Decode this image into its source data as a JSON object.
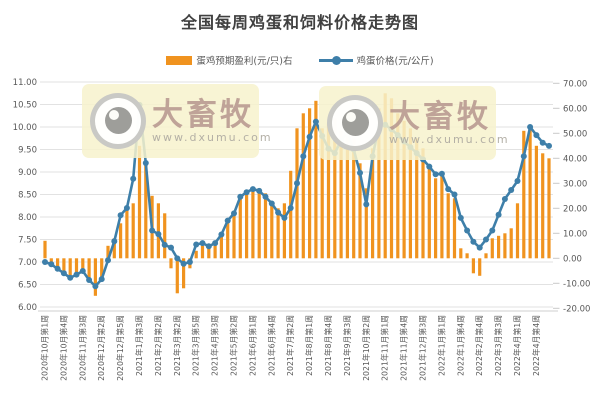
{
  "title": "全国每周鸡蛋和饲料价格走势图",
  "legend": [
    {
      "label": "蛋鸡预期盈利(元/只)右",
      "color": "#F0931F",
      "marker": "bar-swatch"
    },
    {
      "label": "鸡蛋价格(元/公斤)",
      "color": "#3E7FA9",
      "marker": "line-dot-swatch"
    }
  ],
  "watermark": {
    "name": "大畜牧",
    "url": "www.dxumu.com",
    "logo": "eye-logo-icon"
  },
  "chart_data": {
    "type": "combo_bar_line",
    "title": "全国每周鸡蛋和饲料价格走势图",
    "legend_position": "top",
    "grid": "horizontal",
    "x_tick_interval": 3,
    "x_tick_labels": [
      "2020年10月第1周",
      "2020年10月第4周",
      "2020年11月第3周",
      "2020年12月第2周",
      "2020年12月第5周",
      "2021年1月第3周",
      "2021年2月第2周",
      "2021年3月第2周",
      "2021年3月第5周",
      "2021年4月第3周",
      "2021年5月第2周",
      "2021年6月第1周",
      "2021年6月第4周",
      "2021年7月第2周",
      "2021年8月第1周",
      "2021年8月第4周",
      "2021年9月第3周",
      "2021年10月第2周",
      "2021年11月第1周",
      "2021年11月第4周",
      "2021年12月第3周",
      "2022年1月第1周",
      "2022年1月第4周",
      "2022年2月第4周",
      "2022年3月第3周",
      "2022年4月第1周",
      "2022年4月第4周"
    ],
    "left_axis": {
      "min": 6,
      "max": 11,
      "tick_labels": [
        "6.00",
        "6.50",
        "7.00",
        "7.50",
        "8.00",
        "8.50",
        "9.00",
        "9.50",
        "10.00",
        "10.50",
        "11.00"
      ]
    },
    "right_axis": {
      "min": -20,
      "max": 70,
      "tick_labels": [
        "-20.00",
        "-10.00",
        "0.00",
        "10.00",
        "20.00",
        "30.00",
        "40.00",
        "50.00",
        "60.00",
        "70.00"
      ]
    },
    "series": [
      {
        "name": "蛋鸡预期盈利(元/只)右",
        "type": "bar",
        "axis": "right",
        "color": "#F0931F",
        "values": [
          7,
          -2,
          -4,
          -6,
          -7,
          -6,
          -6,
          -9,
          -15,
          -8,
          5,
          8,
          14,
          20,
          22,
          45,
          38,
          25,
          22,
          18,
          -4,
          -14,
          -12,
          -4,
          3,
          5,
          4,
          6,
          10,
          15,
          18,
          24,
          27,
          28,
          28,
          26,
          22,
          20,
          22,
          35,
          52,
          58,
          60,
          63,
          52,
          54,
          56,
          51,
          50,
          48,
          38,
          28,
          44,
          60,
          66,
          64,
          58,
          55,
          52,
          48,
          44,
          36,
          32,
          33,
          26,
          24,
          4,
          2,
          -6,
          -7,
          2,
          8,
          9,
          10,
          12,
          22,
          51,
          52,
          45,
          42,
          40
        ]
      },
      {
        "name": "鸡蛋价格(元/公斤)",
        "type": "line",
        "axis": "left",
        "color": "#3E7FA9",
        "values": [
          7.0,
          6.95,
          6.85,
          6.75,
          6.65,
          6.72,
          6.8,
          6.6,
          6.46,
          6.62,
          7.04,
          7.46,
          8.04,
          8.2,
          8.85,
          10.49,
          9.2,
          7.7,
          7.62,
          7.38,
          7.32,
          7.08,
          6.96,
          7.0,
          7.39,
          7.42,
          7.35,
          7.42,
          7.61,
          7.92,
          8.08,
          8.45,
          8.55,
          8.62,
          8.58,
          8.45,
          8.3,
          8.1,
          7.98,
          8.2,
          8.75,
          9.35,
          9.78,
          10.12,
          9.8,
          9.52,
          9.42,
          9.7,
          9.88,
          9.5,
          8.98,
          8.28,
          9.35,
          10.02,
          10.05,
          9.95,
          9.82,
          9.68,
          9.55,
          9.42,
          9.28,
          9.12,
          8.95,
          8.96,
          8.62,
          8.5,
          7.98,
          7.7,
          7.45,
          7.32,
          7.5,
          7.7,
          8.05,
          8.4,
          8.6,
          8.8,
          9.35,
          10.0,
          9.82,
          9.65,
          9.58
        ]
      }
    ]
  }
}
